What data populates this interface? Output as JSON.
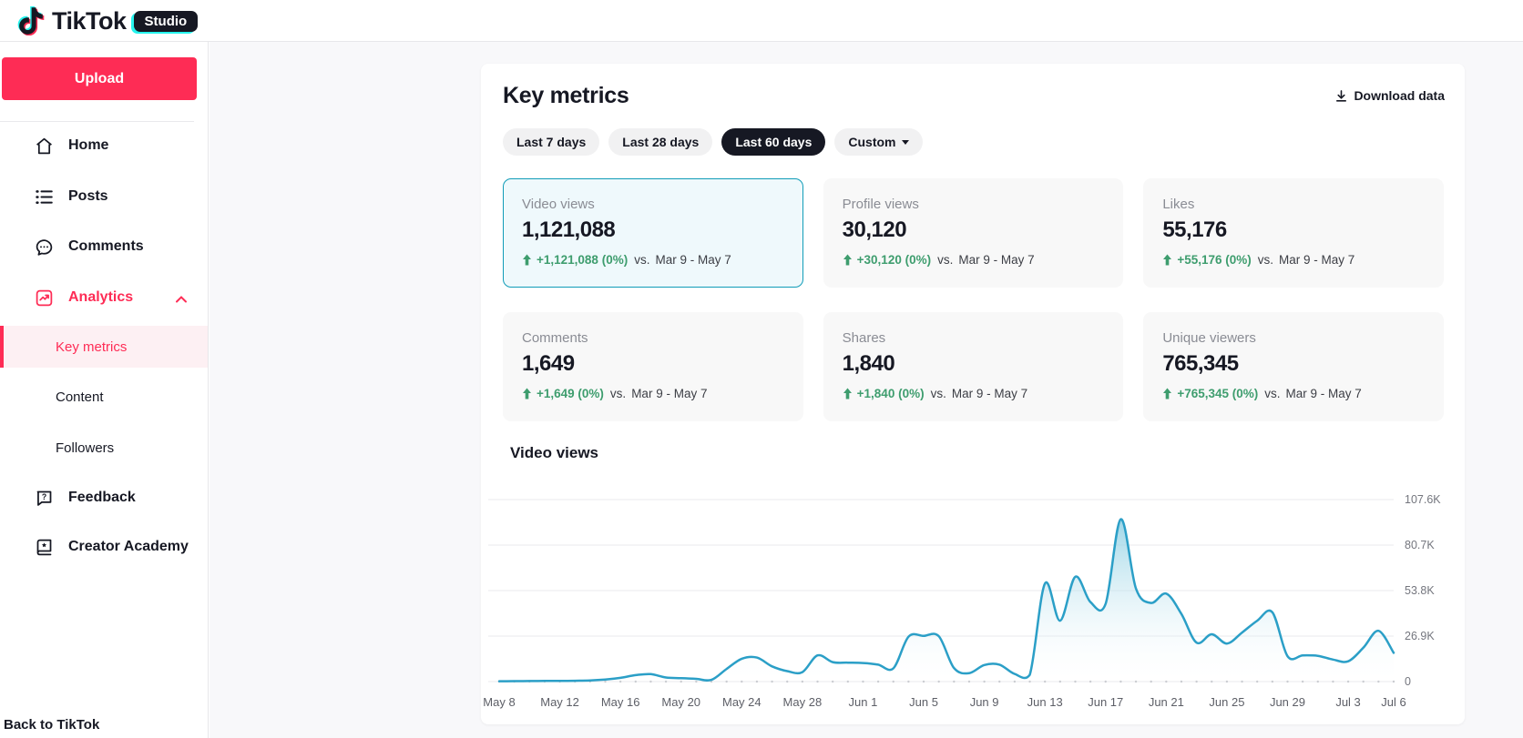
{
  "brand": {
    "name": "TikTok",
    "badge": "Studio"
  },
  "sidebar": {
    "upload_label": "Upload",
    "items": [
      {
        "label": "Home"
      },
      {
        "label": "Posts"
      },
      {
        "label": "Comments"
      },
      {
        "label": "Analytics",
        "active": true,
        "expanded": true,
        "children": [
          "Key metrics",
          "Content",
          "Followers"
        ],
        "active_child": "Key metrics"
      },
      {
        "label": "Feedback"
      },
      {
        "label": "Creator Academy"
      }
    ],
    "back_link": "Back to TikTok"
  },
  "main": {
    "title": "Key metrics",
    "download_label": "Download data",
    "range_pills": [
      {
        "label": "Last 7 days"
      },
      {
        "label": "Last 28 days"
      },
      {
        "label": "Last 60 days",
        "selected": true
      },
      {
        "label": "Custom",
        "dropdown": true
      }
    ],
    "compare_label": "vs.",
    "compare_range": "Mar 9 - May 7",
    "metrics": [
      {
        "label": "Video views",
        "value": "1,121,088",
        "delta": "+1,121,088 (0%)",
        "selected": true
      },
      {
        "label": "Profile views",
        "value": "30,120",
        "delta": "+30,120 (0%)"
      },
      {
        "label": "Likes",
        "value": "55,176",
        "delta": "+55,176 (0%)"
      },
      {
        "label": "Comments",
        "value": "1,649",
        "delta": "+1,649 (0%)"
      },
      {
        "label": "Shares",
        "value": "1,840",
        "delta": "+1,840 (0%)"
      },
      {
        "label": "Unique viewers",
        "value": "765,345",
        "delta": "+765,345 (0%)"
      }
    ],
    "chart_title": "Video views"
  },
  "chart_data": {
    "type": "area",
    "title": "Video views",
    "x_unit": "day",
    "x_start": "May 8",
    "x_end": "Jul 6",
    "x_tick_labels": [
      "May 8",
      "May 12",
      "May 16",
      "May 20",
      "May 24",
      "May 28",
      "Jun 1",
      "Jun 5",
      "Jun 9",
      "Jun 13",
      "Jun 17",
      "Jun 21",
      "Jun 25",
      "Jun 29",
      "Jul 3",
      "Jul 6"
    ],
    "x_tick_day_index": [
      0,
      4,
      8,
      12,
      16,
      20,
      24,
      28,
      32,
      36,
      40,
      44,
      48,
      52,
      56,
      59
    ],
    "y_tick_labels": [
      "0",
      "26.9K",
      "53.8K",
      "80.7K",
      "107.6K"
    ],
    "y_tick_values": [
      0,
      26900,
      53800,
      80700,
      107600
    ],
    "y_max": 107600,
    "grid": true,
    "legend": false,
    "series": [
      {
        "name": "Video views",
        "values_thousands": [
          0.2,
          0.25,
          0.3,
          0.35,
          0.4,
          0.5,
          0.7,
          1.2,
          2.2,
          3.8,
          4.4,
          2.4,
          2.0,
          1.6,
          1.0,
          7.5,
          13.5,
          14.2,
          9.0,
          6.2,
          5.6,
          15.5,
          11.5,
          11.2,
          11.0,
          10.0,
          7.8,
          26.5,
          27.0,
          26.8,
          8.0,
          5.0,
          9.8,
          10.0,
          4.5,
          4.0,
          58.0,
          36.0,
          62.0,
          47.0,
          46.0,
          96.0,
          55.0,
          46.5,
          52.0,
          40.0,
          23.0,
          28.0,
          22.5,
          29.0,
          36.0,
          41.0,
          15.0,
          15.5,
          15.2,
          13.0,
          12.0,
          20.0,
          30.0,
          17.0
        ]
      }
    ],
    "colors": {
      "line": "#2b9fc7",
      "fill_top": "#8ecfe3",
      "grid": "#e9e9ec"
    }
  },
  "colors": {
    "accent": "#fe2c55",
    "selected_card_border": "#109cb8",
    "positive_green": "#3e9d6e",
    "dark_pill": "#161823"
  }
}
